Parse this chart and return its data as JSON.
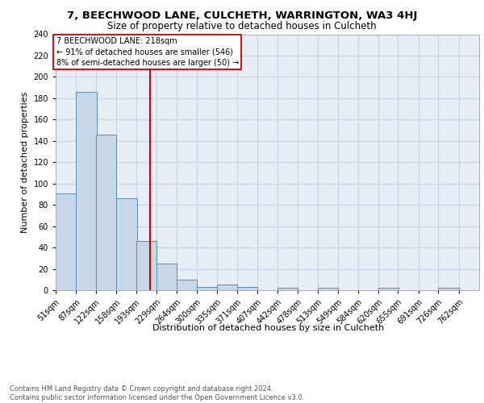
{
  "title1": "7, BEECHWOOD LANE, CULCHETH, WARRINGTON, WA3 4HJ",
  "title2": "Size of property relative to detached houses in Culcheth",
  "xlabel": "Distribution of detached houses by size in Culcheth",
  "ylabel": "Number of detached properties",
  "bin_labels": [
    "51sqm",
    "87sqm",
    "122sqm",
    "158sqm",
    "193sqm",
    "229sqm",
    "264sqm",
    "300sqm",
    "335sqm",
    "371sqm",
    "407sqm",
    "442sqm",
    "478sqm",
    "513sqm",
    "549sqm",
    "584sqm",
    "620sqm",
    "655sqm",
    "691sqm",
    "726sqm",
    "762sqm"
  ],
  "bin_edges": [
    51,
    87,
    122,
    158,
    193,
    229,
    264,
    300,
    335,
    371,
    407,
    442,
    478,
    513,
    549,
    584,
    620,
    655,
    691,
    726,
    762
  ],
  "bar_heights": [
    91,
    186,
    146,
    86,
    46,
    25,
    10,
    3,
    5,
    3,
    0,
    2,
    0,
    2,
    0,
    0,
    2,
    0,
    0,
    2
  ],
  "bar_color": "#c8d8e8",
  "bar_edge_color": "#5b8db8",
  "vline_x": 218,
  "vline_color": "#cc0000",
  "annotation_text": "7 BEECHWOOD LANE: 218sqm\n← 91% of detached houses are smaller (546)\n8% of semi-detached houses are larger (50) →",
  "annotation_box_color": "#ffffff",
  "annotation_box_edge": "#cc0000",
  "grid_color": "#c8d4e4",
  "background_color": "#e8eef6",
  "ylim": [
    0,
    240
  ],
  "yticks": [
    0,
    20,
    40,
    60,
    80,
    100,
    120,
    140,
    160,
    180,
    200,
    220,
    240
  ],
  "footer": "Contains HM Land Registry data © Crown copyright and database right 2024.\nContains public sector information licensed under the Open Government Licence v3.0.",
  "title1_fontsize": 9.5,
  "title2_fontsize": 8.5,
  "ylabel_fontsize": 8,
  "xlabel_fontsize": 8,
  "tick_fontsize": 7,
  "annotation_fontsize": 7,
  "footer_fontsize": 6
}
